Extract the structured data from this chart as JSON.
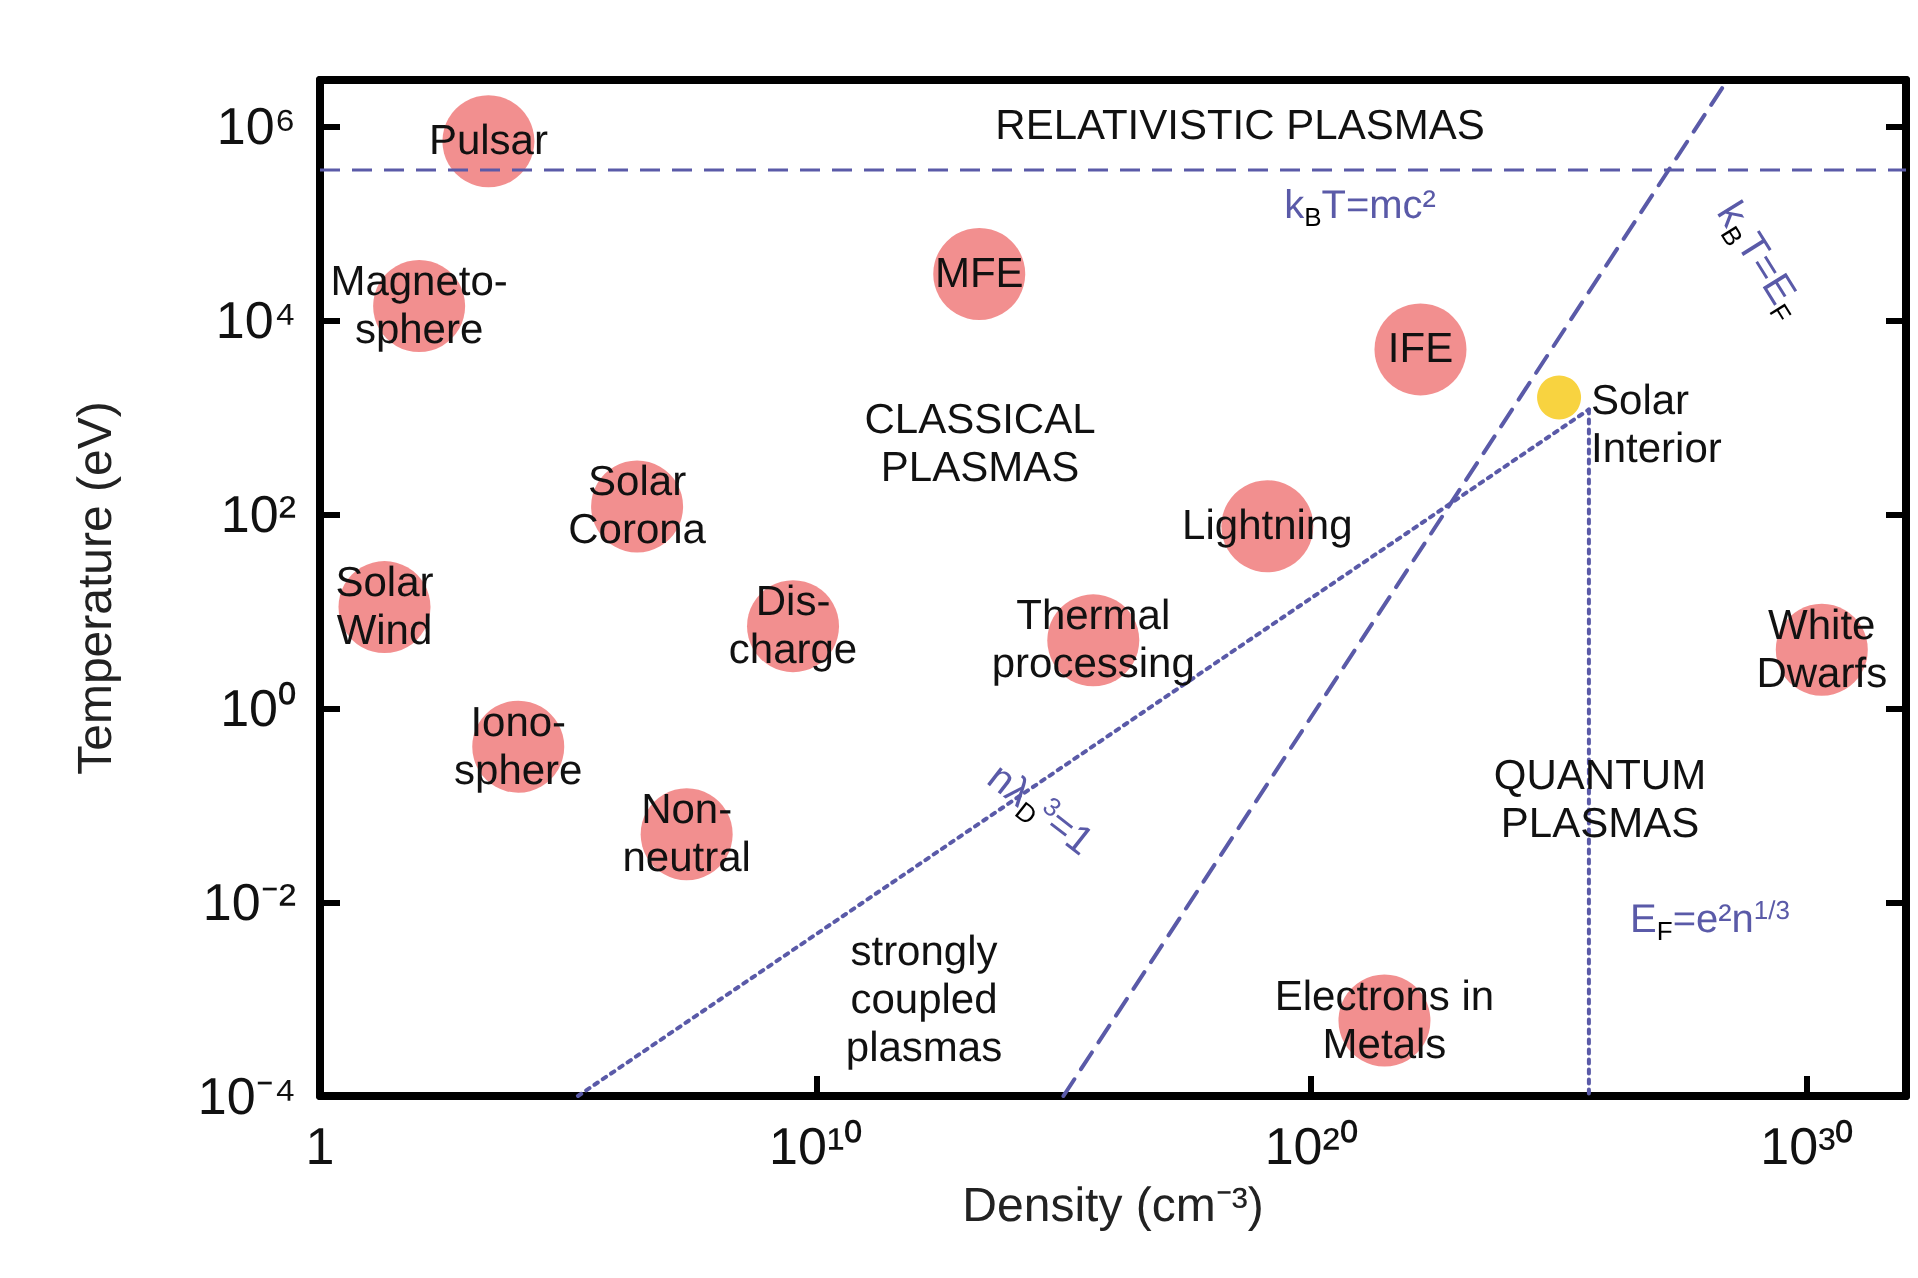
{
  "chart_data": {
    "type": "scatter",
    "xlabel": "Density (cm⁻³)",
    "ylabel": "Temperature (eV)",
    "log": "xy",
    "grid": false,
    "marker": "circle",
    "xlim": [
      1,
      1e+32
    ],
    "xticks": [
      1,
      {
        "value": 10000000000.0,
        "label": "10¹⁰"
      },
      {
        "value": 1e+20,
        "label": "10²⁰"
      },
      {
        "value": 1e+30,
        "label": "10³⁰"
      }
    ],
    "ylim": [
      0.0001,
      3000000
    ],
    "yticks": [
      {
        "value": 0.0001,
        "label": "10⁻⁴"
      },
      {
        "value": 0.01,
        "label": "10⁻²"
      },
      {
        "value": 1,
        "label": "10⁰"
      },
      {
        "value": 100,
        "label": "10²"
      },
      {
        "value": 10000,
        "label": "10⁴"
      },
      {
        "value": 1000000,
        "label": "10⁶"
      }
    ],
    "series": [
      {
        "color": "#ee6a6a",
        "x": [
          2500,
          100,
          20000000000000.0,
          1.6e+22,
          2500000.0,
          20,
          3500000000.0,
          4000000000000000.0,
          1.3e+19,
          2e+30,
          10000.0,
          25000000.0,
          3e+21
        ],
        "values": [
          700000,
          14000,
          30000,
          5000,
          120,
          11,
          7,
          5,
          75,
          4,
          0.4,
          0.05,
          0.0006
        ]
      },
      {
        "color": "#f5c400",
        "x": [
          1e+25
        ],
        "values": [
          1600
        ]
      },
      {
        "type": "line",
        "color": "#5a5aa8",
        "line_style": "dashed",
        "marker": "none",
        "x": [
          1000000000000000.0,
          2.5e+28
        ],
        "values": [
          0.0001,
          3000000
        ]
      },
      {
        "type": "line",
        "color": "#5a5aa8",
        "line_style": "dotted",
        "marker": "none",
        "x": [
          160000.0,
          4e+25
        ],
        "values": [
          0.0001,
          1200
        ]
      },
      {
        "type": "line",
        "color": "#5a5aa8",
        "line_style": "dotted",
        "marker": "none",
        "x": [
          4e+25,
          4e+25
        ],
        "values": [
          1200,
          0.0001
        ]
      }
    ],
    "ref_lines": [
      {
        "axis": "y",
        "value": 350000,
        "color": "#5a5aa8",
        "line_style": "dashed"
      }
    ],
    "annotations": [
      {
        "text": "Pulsar",
        "x": 2500,
        "y": 700000
      },
      {
        "text": "Magneto-\nsphere",
        "x": 100,
        "y": 14000
      },
      {
        "text": "MFE",
        "x": 20000000000000.0,
        "y": 30000
      },
      {
        "text": "IFE",
        "x": 1.6e+22,
        "y": 5000
      },
      {
        "text": "Solar\nCorona",
        "x": 2500000.0,
        "y": 120
      },
      {
        "text": "Solar\nWind",
        "x": 20,
        "y": 11
      },
      {
        "text": "Dis-\ncharge",
        "x": 3500000000.0,
        "y": 7
      },
      {
        "text": "Thermal\nprocessing",
        "x": 4000000000000000.0,
        "y": 5
      },
      {
        "text": "Lightning",
        "x": 1.3e+19,
        "y": 75
      },
      {
        "text": "White\nDwarfs",
        "x": 2e+30,
        "y": 4
      },
      {
        "text": "Iono-\nsphere",
        "x": 10000.0,
        "y": 0.4
      },
      {
        "text": "Non-\nneutral",
        "x": 25000000.0,
        "y": 0.05
      },
      {
        "text": "Electrons in\nMetals",
        "x": 3e+21,
        "y": 0.0006
      },
      {
        "text": "Solar\nInterior",
        "x": 1e+25,
        "y": 1600
      },
      "RELATIVISTIC PLASMAS",
      "CLASSICAL\nPLASMAS",
      "QUANTUM\nPLASMAS",
      "strongly\ncoupled\nplasmas",
      "k$_{B}$T=mc²",
      "k$_{B}$T=E$_{F}$",
      "nλ$_{D}$$^{3}$=1",
      "E$_{F}$=e²n$^{1/3}$"
    ]
  }
}
